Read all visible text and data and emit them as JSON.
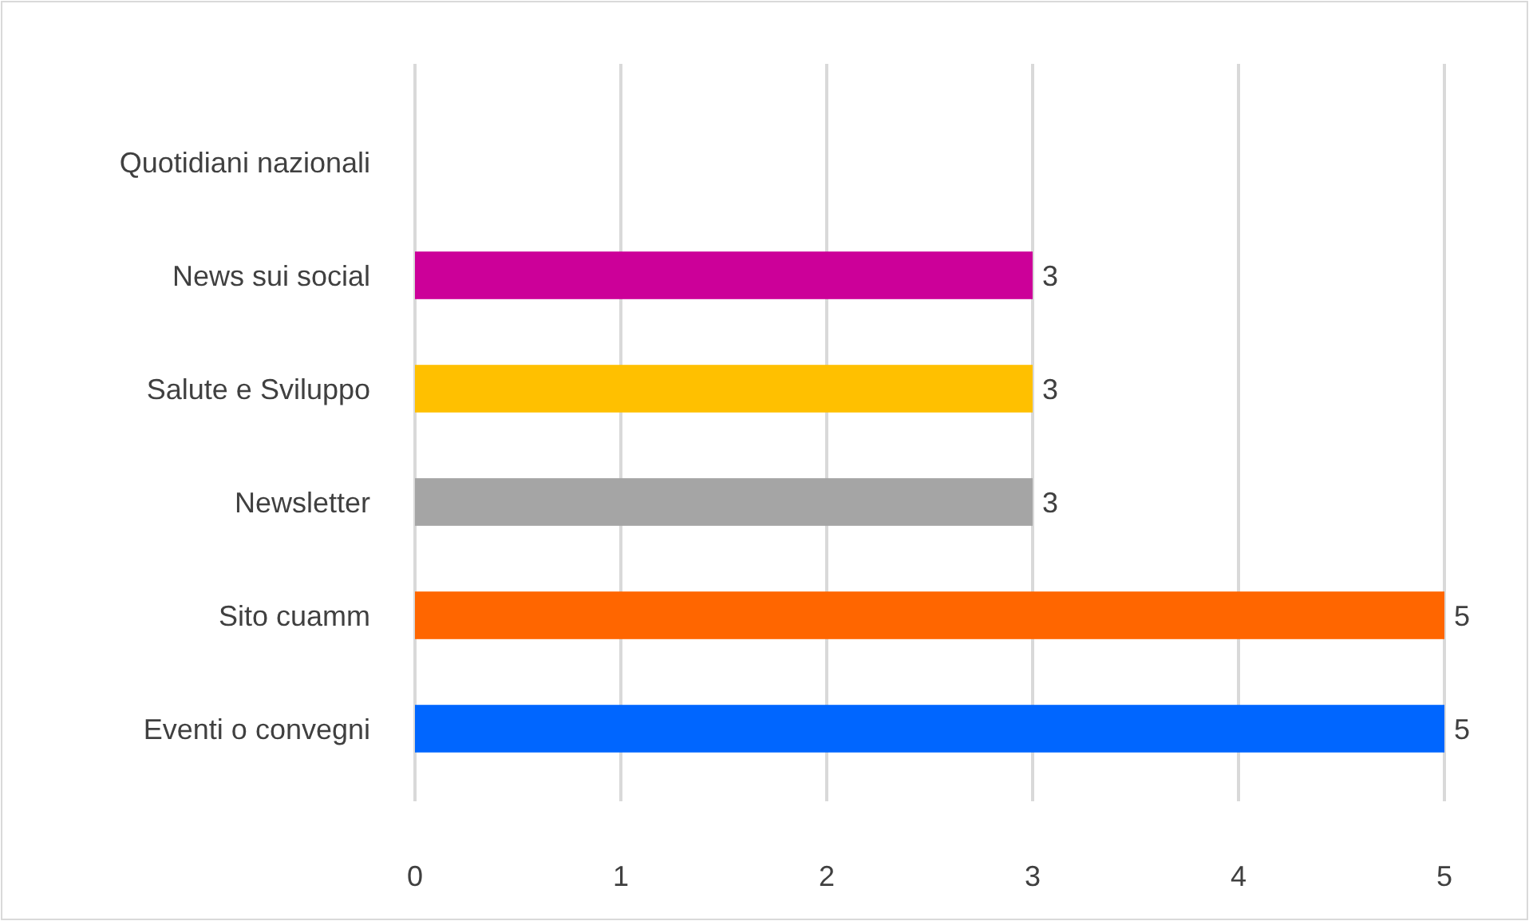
{
  "chart_data": {
    "type": "bar",
    "orientation": "horizontal",
    "categories": [
      "Quotidiani nazionali",
      "News sui social",
      "Salute e Sviluppo",
      "Newsletter",
      "Sito cuamm",
      "Eventi o convegni"
    ],
    "values": [
      0,
      3,
      3,
      3,
      5,
      5
    ],
    "colors": [
      "#4472c4",
      "#cc0099",
      "#ffc000",
      "#a5a5a5",
      "#ff6600",
      "#0066ff"
    ],
    "value_labels": [
      null,
      "3",
      "3",
      "3",
      "5",
      "5"
    ],
    "xlim": [
      0,
      5
    ],
    "xticks": [
      0,
      1,
      2,
      3,
      4,
      5
    ],
    "grid": "x"
  }
}
